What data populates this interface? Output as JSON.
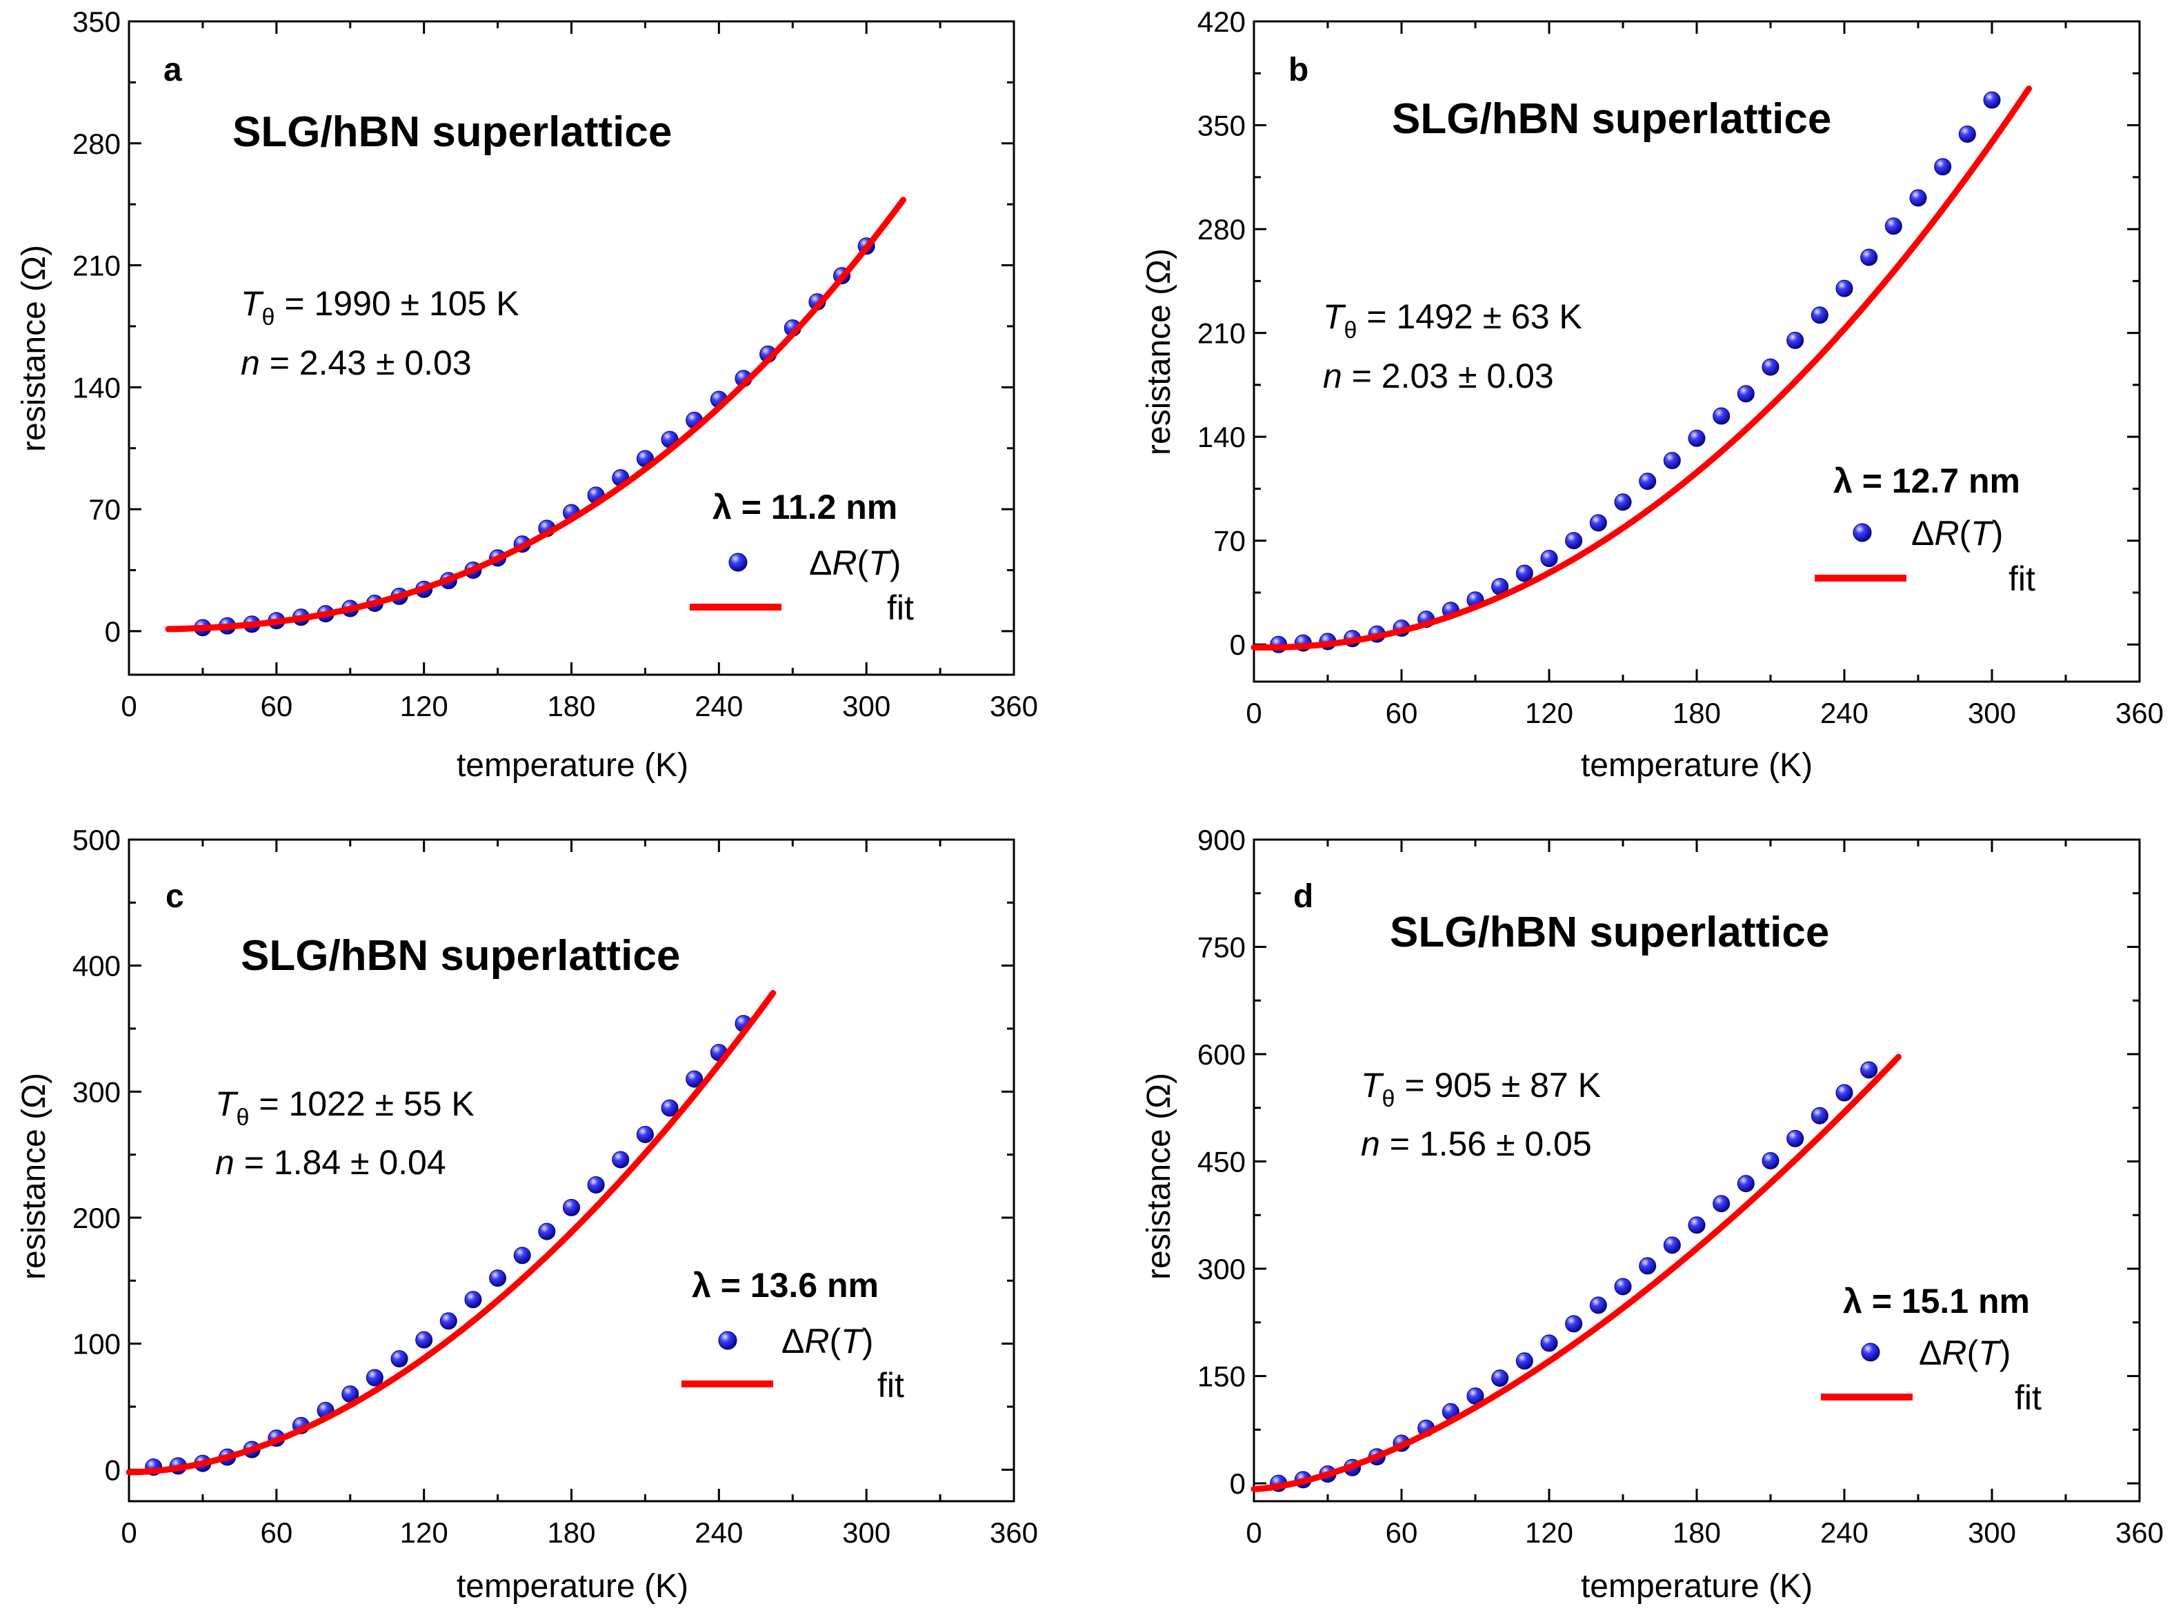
{
  "figure": {
    "colors": {
      "fit": "#ff0000",
      "marker": "#2222ee",
      "marker_edge": "#00007a",
      "axis": "#000000"
    }
  },
  "chart_data": [
    {
      "panel": "a",
      "type": "scatter",
      "title": "SLG/hBN superlattice",
      "xlabel": "temperature (K)",
      "ylabel": "resistance (Ω)",
      "xlim": [
        0,
        360
      ],
      "ylim": [
        -25,
        350
      ],
      "xticks": [
        0,
        60,
        120,
        180,
        240,
        300,
        360
      ],
      "yticks": [
        0,
        70,
        140,
        210,
        280,
        350
      ],
      "params": {
        "t_symbol": "T",
        "t_sub": "θ",
        "t_rest": " = 1990 ± 105 K",
        "n_symbol": "n",
        "n_rest": " = 2.43 ± 0.03"
      },
      "legend": {
        "title": "λ = 11.2 nm",
        "marker_label_delta": "Δ",
        "marker_label_R": "R",
        "marker_label_open": "(",
        "marker_label_T": "T",
        "marker_label_close": ")",
        "fit_label": "fit"
      },
      "series": [
        {
          "name": "ΔR(T)",
          "kind": "markers",
          "x": [
            30,
            40,
            50,
            60,
            70,
            80,
            90,
            100,
            110,
            120,
            130,
            140,
            150,
            160,
            170,
            180,
            190,
            200,
            210,
            220,
            230,
            240,
            250,
            260,
            270,
            280,
            290,
            300
          ],
          "y": [
            2,
            3,
            4,
            6,
            8,
            10,
            13,
            16,
            20,
            24,
            29,
            35,
            42,
            50,
            59,
            68,
            78,
            88,
            99,
            110,
            121,
            133,
            145,
            159,
            174,
            189,
            204,
            221
          ]
        },
        {
          "name": "fit",
          "kind": "line",
          "model": "power",
          "x_start": 16,
          "x_end": 315,
          "y0": 1,
          "A": 219,
          "x_ref": 300,
          "exponent": 2.43
        }
      ]
    },
    {
      "panel": "b",
      "type": "scatter",
      "title": "SLG/hBN superlattice",
      "xlabel": "temperature (K)",
      "ylabel": "resistance (Ω)",
      "xlim": [
        0,
        360
      ],
      "ylim": [
        -25,
        420
      ],
      "xticks": [
        0,
        60,
        120,
        180,
        240,
        300,
        360
      ],
      "yticks": [
        0,
        70,
        140,
        210,
        280,
        350,
        420
      ],
      "params": {
        "t_symbol": "T",
        "t_sub": "θ",
        "t_rest": " = 1492 ± 63 K",
        "n_symbol": "n",
        "n_rest": " = 2.03 ± 0.03"
      },
      "legend": {
        "title": "λ = 12.7 nm",
        "marker_label_delta": "Δ",
        "marker_label_R": "R",
        "marker_label_open": "(",
        "marker_label_T": "T",
        "marker_label_close": ")",
        "fit_label": "fit"
      },
      "series": [
        {
          "name": "ΔR(T)",
          "kind": "markers",
          "x": [
            10,
            20,
            30,
            40,
            50,
            60,
            70,
            80,
            90,
            100,
            110,
            120,
            130,
            140,
            150,
            160,
            170,
            180,
            190,
            200,
            210,
            220,
            230,
            240,
            250,
            260,
            270,
            280,
            290,
            300
          ],
          "y": [
            0,
            1,
            2,
            4,
            7,
            11,
            17,
            23,
            30,
            39,
            48,
            58,
            70,
            82,
            96,
            110,
            124,
            139,
            154,
            169,
            187,
            205,
            222,
            240,
            261,
            282,
            301,
            322,
            344,
            367
          ]
        },
        {
          "name": "fit",
          "kind": "line",
          "model": "power",
          "x_start": 0,
          "x_end": 315,
          "y0": -2,
          "A": 0.0033,
          "x_ref": 1,
          "exponent": 2.03,
          "x_off": 5
        }
      ]
    },
    {
      "panel": "c",
      "type": "scatter",
      "title": "SLG/hBN superlattice",
      "xlabel": "temperature (K)",
      "ylabel": "resistance (Ω)",
      "xlim": [
        0,
        360
      ],
      "ylim": [
        -25,
        500
      ],
      "xticks": [
        0,
        60,
        120,
        180,
        240,
        300,
        360
      ],
      "yticks": [
        0,
        100,
        200,
        300,
        400,
        500
      ],
      "params": {
        "t_symbol": "T",
        "t_sub": "θ",
        "t_rest": " = 1022 ± 55 K",
        "n_symbol": "n",
        "n_rest": " = 1.84 ± 0.04"
      },
      "legend": {
        "title": "λ = 13.6 nm",
        "marker_label_delta": "Δ",
        "marker_label_R": "R",
        "marker_label_open": "(",
        "marker_label_T": "T",
        "marker_label_close": ")",
        "fit_label": "fit"
      },
      "series": [
        {
          "name": "ΔR(T)",
          "kind": "markers",
          "x": [
            10,
            20,
            30,
            40,
            50,
            60,
            70,
            80,
            90,
            100,
            110,
            120,
            130,
            140,
            150,
            160,
            170,
            180,
            190,
            200,
            210,
            220,
            230,
            240,
            250
          ],
          "y": [
            2,
            3,
            5,
            10,
            16,
            25,
            35,
            47,
            60,
            73,
            88,
            103,
            118,
            135,
            152,
            170,
            189,
            208,
            226,
            246,
            266,
            287,
            310,
            331,
            354
          ]
        },
        {
          "name": "fit",
          "kind": "line",
          "model": "power",
          "x_start": 0,
          "x_end": 262,
          "y0": -2,
          "A": 0.0135,
          "x_ref": 1,
          "exponent": 1.84
        }
      ]
    },
    {
      "panel": "d",
      "type": "scatter",
      "title": "SLG/hBN superlattice",
      "xlabel": "temperature (K)",
      "ylabel": "resistance (Ω)",
      "xlim": [
        0,
        360
      ],
      "ylim": [
        -25,
        900
      ],
      "xticks": [
        0,
        60,
        120,
        180,
        240,
        300,
        360
      ],
      "yticks": [
        0,
        150,
        300,
        450,
        600,
        750,
        900
      ],
      "params": {
        "t_symbol": "T",
        "t_sub": "θ",
        "t_rest": " = 905 ± 87 K",
        "n_symbol": "n",
        "n_rest": " = 1.56 ± 0.05"
      },
      "legend": {
        "title": "λ = 15.1 nm",
        "marker_label_delta": "Δ",
        "marker_label_R": "R",
        "marker_label_open": "(",
        "marker_label_T": "T",
        "marker_label_close": ")",
        "fit_label": "fit"
      },
      "series": [
        {
          "name": "ΔR(T)",
          "kind": "markers",
          "x": [
            10,
            20,
            30,
            40,
            50,
            60,
            70,
            80,
            90,
            100,
            110,
            120,
            130,
            140,
            150,
            160,
            170,
            180,
            190,
            200,
            210,
            220,
            230,
            240,
            250
          ],
          "y": [
            0,
            5,
            13,
            22,
            37,
            56,
            77,
            100,
            122,
            147,
            171,
            196,
            223,
            249,
            275,
            304,
            333,
            361,
            391,
            419,
            451,
            482,
            514,
            546,
            578
          ]
        },
        {
          "name": "fit",
          "kind": "line",
          "model": "power",
          "x_start": 0,
          "x_end": 262,
          "y0": -8,
          "A": 0.102,
          "x_ref": 1,
          "exponent": 1.56
        }
      ]
    }
  ]
}
